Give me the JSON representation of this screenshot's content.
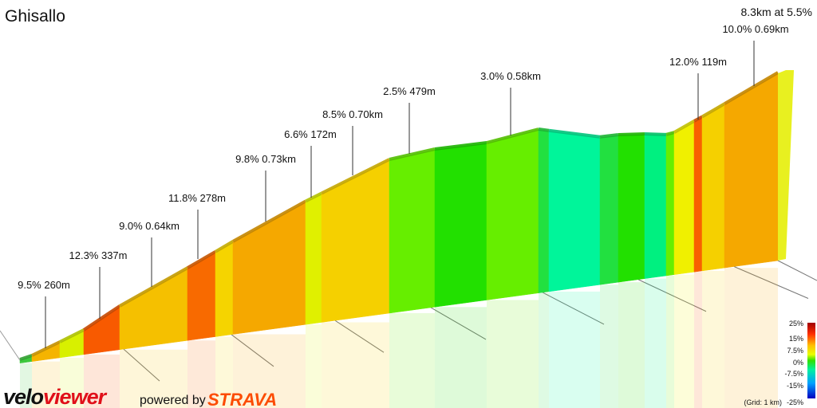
{
  "title": "Ghisallo",
  "summary": "8.3km at 5.5%",
  "annotations": [
    "9.5% 260m",
    "12.3% 337m",
    "9.0% 0.64km",
    "11.8% 278m",
    "9.8% 0.73km",
    "6.6% 172m",
    "8.5% 0.70km",
    "2.5% 479m",
    "3.0% 0.58km",
    "12.0% 119m",
    "10.0% 0.69km"
  ],
  "legend": {
    "labels": [
      "25%",
      "15%",
      "7.5%",
      "0%",
      "-7.5%",
      "-15%",
      "-25%"
    ],
    "note": "(Grid: 1 km)"
  },
  "footer": {
    "brand_velo": "velo",
    "brand_viewer": "viewer",
    "powered": "powered by",
    "strava": "STRAVA"
  }
}
